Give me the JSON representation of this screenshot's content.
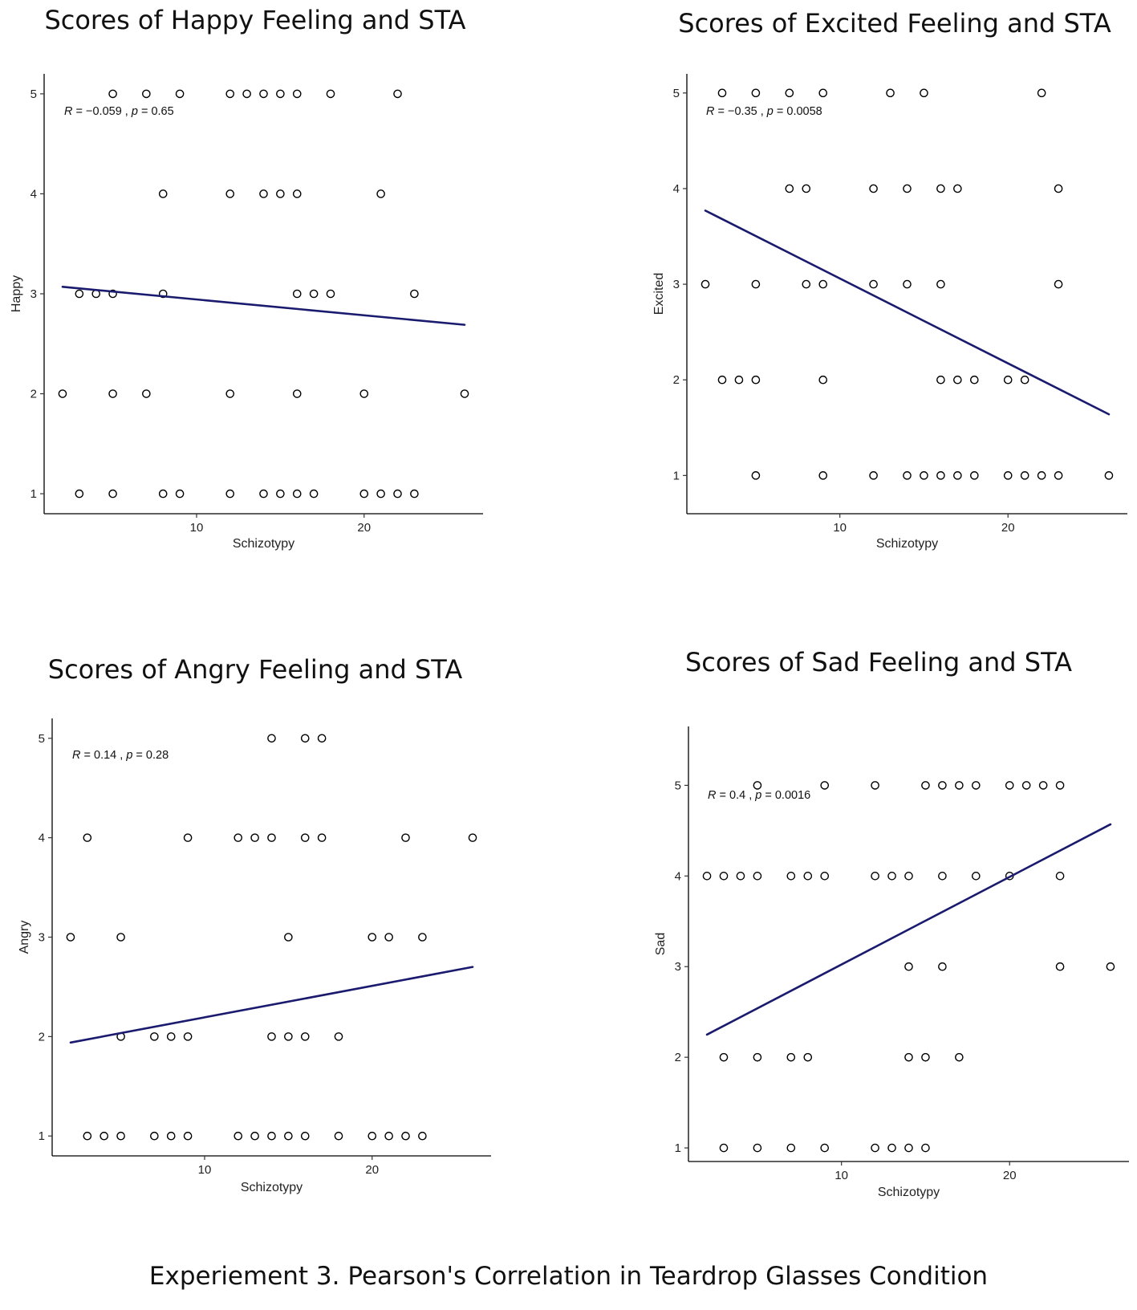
{
  "caption": "Experiement 3. Pearson's Correlation in Teardrop Glasses Condition",
  "colors": {
    "fit_line": "#1a1a6e",
    "points": "#000000",
    "axis": "#000000"
  },
  "chart_data": [
    {
      "type": "scatter",
      "title": "Scores of Happy Feeling and STA",
      "xlabel": "Schizotypy",
      "ylabel": "Happy",
      "xlim": [
        0.9,
        27.1
      ],
      "ylim": [
        0.8,
        5.2
      ],
      "xticks": [
        10,
        20
      ],
      "yticks": [
        1,
        2,
        3,
        4,
        5
      ],
      "annotation": {
        "r_label": "R",
        "r_value": " = −0.059 , ",
        "p_label": "p",
        "p_value": " = 0.65"
      },
      "fit": {
        "x": [
          2,
          26
        ],
        "y": [
          3.07,
          2.69
        ]
      },
      "points": [
        [
          5,
          5
        ],
        [
          7,
          5
        ],
        [
          9,
          5
        ],
        [
          12,
          5
        ],
        [
          13,
          5
        ],
        [
          14,
          5
        ],
        [
          15,
          5
        ],
        [
          16,
          5
        ],
        [
          18,
          5
        ],
        [
          22,
          5
        ],
        [
          8,
          4
        ],
        [
          12,
          4
        ],
        [
          14,
          4
        ],
        [
          15,
          4
        ],
        [
          16,
          4
        ],
        [
          21,
          4
        ],
        [
          3,
          3
        ],
        [
          4,
          3
        ],
        [
          5,
          3
        ],
        [
          8,
          3
        ],
        [
          16,
          3
        ],
        [
          17,
          3
        ],
        [
          18,
          3
        ],
        [
          23,
          3
        ],
        [
          2,
          2
        ],
        [
          5,
          2
        ],
        [
          7,
          2
        ],
        [
          12,
          2
        ],
        [
          16,
          2
        ],
        [
          20,
          2
        ],
        [
          26,
          2
        ],
        [
          3,
          1
        ],
        [
          5,
          1
        ],
        [
          8,
          1
        ],
        [
          9,
          1
        ],
        [
          12,
          1
        ],
        [
          14,
          1
        ],
        [
          15,
          1
        ],
        [
          16,
          1
        ],
        [
          17,
          1
        ],
        [
          20,
          1
        ],
        [
          21,
          1
        ],
        [
          22,
          1
        ],
        [
          23,
          1
        ]
      ]
    },
    {
      "type": "scatter",
      "title": "Scores of Excited Feeling and STA",
      "xlabel": "Schizotypy",
      "ylabel": "Excited",
      "xlim": [
        0.9,
        27.1
      ],
      "ylim": [
        0.6,
        5.2
      ],
      "xticks": [
        10,
        20
      ],
      "yticks": [
        1,
        2,
        3,
        4,
        5
      ],
      "annotation": {
        "r_label": "R",
        "r_value": " = −0.35 , ",
        "p_label": "p",
        "p_value": " = 0.0058"
      },
      "fit": {
        "x": [
          2,
          26
        ],
        "y": [
          3.77,
          1.64
        ]
      },
      "points": [
        [
          3,
          5
        ],
        [
          5,
          5
        ],
        [
          7,
          5
        ],
        [
          9,
          5
        ],
        [
          13,
          5
        ],
        [
          15,
          5
        ],
        [
          22,
          5
        ],
        [
          7,
          4
        ],
        [
          8,
          4
        ],
        [
          12,
          4
        ],
        [
          14,
          4
        ],
        [
          16,
          4
        ],
        [
          17,
          4
        ],
        [
          23,
          4
        ],
        [
          2,
          3
        ],
        [
          5,
          3
        ],
        [
          8,
          3
        ],
        [
          9,
          3
        ],
        [
          12,
          3
        ],
        [
          14,
          3
        ],
        [
          16,
          3
        ],
        [
          23,
          3
        ],
        [
          3,
          2
        ],
        [
          4,
          2
        ],
        [
          5,
          2
        ],
        [
          9,
          2
        ],
        [
          16,
          2
        ],
        [
          17,
          2
        ],
        [
          18,
          2
        ],
        [
          20,
          2
        ],
        [
          21,
          2
        ],
        [
          5,
          1
        ],
        [
          9,
          1
        ],
        [
          12,
          1
        ],
        [
          14,
          1
        ],
        [
          15,
          1
        ],
        [
          16,
          1
        ],
        [
          17,
          1
        ],
        [
          18,
          1
        ],
        [
          20,
          1
        ],
        [
          21,
          1
        ],
        [
          22,
          1
        ],
        [
          23,
          1
        ],
        [
          26,
          1
        ]
      ]
    },
    {
      "type": "scatter",
      "title": "Scores of Angry Feeling and STA",
      "xlabel": "Schizotypy",
      "ylabel": "Angry",
      "xlim": [
        0.9,
        27.1
      ],
      "ylim": [
        0.8,
        5.2
      ],
      "xticks": [
        10,
        20
      ],
      "yticks": [
        1,
        2,
        3,
        4,
        5
      ],
      "annotation": {
        "r_label": "R",
        "r_value": " = 0.14 , ",
        "p_label": "p",
        "p_value": " = 0.28"
      },
      "fit": {
        "x": [
          2,
          26
        ],
        "y": [
          1.94,
          2.7
        ]
      },
      "points": [
        [
          14,
          5
        ],
        [
          16,
          5
        ],
        [
          17,
          5
        ],
        [
          3,
          4
        ],
        [
          9,
          4
        ],
        [
          12,
          4
        ],
        [
          13,
          4
        ],
        [
          14,
          4
        ],
        [
          16,
          4
        ],
        [
          17,
          4
        ],
        [
          22,
          4
        ],
        [
          26,
          4
        ],
        [
          2,
          3
        ],
        [
          5,
          3
        ],
        [
          15,
          3
        ],
        [
          20,
          3
        ],
        [
          21,
          3
        ],
        [
          23,
          3
        ],
        [
          5,
          2
        ],
        [
          7,
          2
        ],
        [
          8,
          2
        ],
        [
          9,
          2
        ],
        [
          14,
          2
        ],
        [
          15,
          2
        ],
        [
          16,
          2
        ],
        [
          18,
          2
        ],
        [
          3,
          1
        ],
        [
          4,
          1
        ],
        [
          5,
          1
        ],
        [
          7,
          1
        ],
        [
          8,
          1
        ],
        [
          9,
          1
        ],
        [
          12,
          1
        ],
        [
          13,
          1
        ],
        [
          14,
          1
        ],
        [
          15,
          1
        ],
        [
          16,
          1
        ],
        [
          18,
          1
        ],
        [
          20,
          1
        ],
        [
          21,
          1
        ],
        [
          22,
          1
        ],
        [
          23,
          1
        ]
      ]
    },
    {
      "type": "scatter",
      "title": "Scores of Sad Feeling and STA",
      "xlabel": "Schizotypy",
      "ylabel": "Sad",
      "xlim": [
        0.9,
        27.1
      ],
      "ylim": [
        0.85,
        5.65
      ],
      "xticks": [
        10,
        20
      ],
      "yticks": [
        1,
        2,
        3,
        4,
        5
      ],
      "annotation": {
        "r_label": "R",
        "r_value": " = 0.4 , ",
        "p_label": "p",
        "p_value": " = 0.0016"
      },
      "fit": {
        "x": [
          2,
          26
        ],
        "y": [
          2.25,
          4.57
        ]
      },
      "points": [
        [
          5,
          5
        ],
        [
          9,
          5
        ],
        [
          12,
          5
        ],
        [
          15,
          5
        ],
        [
          16,
          5
        ],
        [
          17,
          5
        ],
        [
          18,
          5
        ],
        [
          20,
          5
        ],
        [
          21,
          5
        ],
        [
          22,
          5
        ],
        [
          23,
          5
        ],
        [
          2,
          4
        ],
        [
          3,
          4
        ],
        [
          4,
          4
        ],
        [
          5,
          4
        ],
        [
          7,
          4
        ],
        [
          8,
          4
        ],
        [
          9,
          4
        ],
        [
          12,
          4
        ],
        [
          13,
          4
        ],
        [
          14,
          4
        ],
        [
          16,
          4
        ],
        [
          18,
          4
        ],
        [
          20,
          4
        ],
        [
          23,
          4
        ],
        [
          14,
          3
        ],
        [
          16,
          3
        ],
        [
          23,
          3
        ],
        [
          26,
          3
        ],
        [
          3,
          2
        ],
        [
          5,
          2
        ],
        [
          7,
          2
        ],
        [
          8,
          2
        ],
        [
          14,
          2
        ],
        [
          15,
          2
        ],
        [
          17,
          2
        ],
        [
          3,
          1
        ],
        [
          5,
          1
        ],
        [
          7,
          1
        ],
        [
          9,
          1
        ],
        [
          12,
          1
        ],
        [
          13,
          1
        ],
        [
          14,
          1
        ],
        [
          15,
          1
        ]
      ]
    }
  ]
}
